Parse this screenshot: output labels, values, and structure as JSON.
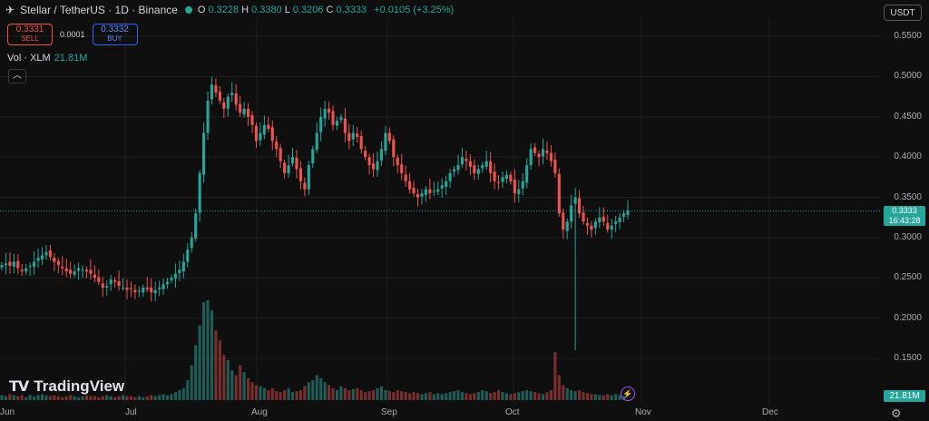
{
  "header": {
    "symbol": "Stellar / TetherUS · 1D · Binance",
    "open_key": "O",
    "open": "0.3228",
    "high_key": "H",
    "high": "0.3380",
    "low_key": "L",
    "low": "0.3206",
    "close_key": "C",
    "close": "0.3333",
    "change": "+0.0105 (+3.25%)"
  },
  "trade": {
    "sell_price": "0.3331",
    "sell_label": "SELL",
    "spread": "0.0001",
    "buy_price": "0.3332",
    "buy_label": "BUY"
  },
  "volume_legend": {
    "name": "Vol · XLM",
    "value": "21.81M"
  },
  "currency_button": "USDT",
  "y_axis_labels": [
    "0.5500",
    "0.5000",
    "0.4500",
    "0.4000",
    "0.3500",
    "0.3000",
    "0.2500",
    "0.2000",
    "0.1500"
  ],
  "x_axis_labels": [
    "Jun",
    "Jul",
    "Aug",
    "Sep",
    "Oct",
    "Nov",
    "Dec"
  ],
  "last_price": {
    "price": "0.3333",
    "countdown": "16:43:28"
  },
  "volume_badge": "21.81M",
  "logo_text": "TradingView",
  "colors": {
    "up": "#26a69a",
    "down": "#ef5350",
    "background": "#0f0f0f",
    "grid": "#1f1f1f",
    "price_line": "#26a69a"
  },
  "icons": {
    "symbol_logo": "stellar-logo-icon",
    "collapse": "chevron-up-icon",
    "settings": "gear-icon",
    "lightning": "lightning-icon"
  },
  "chart_data": {
    "type": "candlestick",
    "ylim": [
      0.11,
      0.58
    ],
    "y_ticks": [
      0.55,
      0.5,
      0.45,
      0.4,
      0.35,
      0.3,
      0.25,
      0.2,
      0.15
    ],
    "current_price": 0.3333,
    "spike_low": 0.16,
    "close_series": [
      0.266,
      0.268,
      0.265,
      0.27,
      0.262,
      0.258,
      0.262,
      0.265,
      0.27,
      0.275,
      0.278,
      0.282,
      0.276,
      0.27,
      0.266,
      0.262,
      0.258,
      0.255,
      0.258,
      0.262,
      0.26,
      0.258,
      0.255,
      0.25,
      0.245,
      0.238,
      0.24,
      0.248,
      0.245,
      0.24,
      0.238,
      0.235,
      0.236,
      0.232,
      0.234,
      0.238,
      0.236,
      0.232,
      0.235,
      0.238,
      0.242,
      0.245,
      0.25,
      0.255,
      0.26,
      0.27,
      0.285,
      0.3,
      0.33,
      0.38,
      0.43,
      0.47,
      0.49,
      0.48,
      0.47,
      0.46,
      0.475,
      0.48,
      0.465,
      0.455,
      0.46,
      0.45,
      0.44,
      0.42,
      0.43,
      0.44,
      0.435,
      0.42,
      0.41,
      0.395,
      0.38,
      0.39,
      0.4,
      0.385,
      0.37,
      0.36,
      0.39,
      0.41,
      0.43,
      0.45,
      0.46,
      0.455,
      0.44,
      0.445,
      0.45,
      0.43,
      0.42,
      0.43,
      0.425,
      0.41,
      0.4,
      0.39,
      0.385,
      0.395,
      0.41,
      0.43,
      0.42,
      0.4,
      0.39,
      0.38,
      0.37,
      0.36,
      0.355,
      0.35,
      0.355,
      0.36,
      0.355,
      0.358,
      0.36,
      0.365,
      0.37,
      0.38,
      0.385,
      0.39,
      0.4,
      0.395,
      0.388,
      0.38,
      0.385,
      0.39,
      0.395,
      0.38,
      0.37,
      0.368,
      0.375,
      0.378,
      0.37,
      0.355,
      0.36,
      0.37,
      0.39,
      0.41,
      0.405,
      0.4,
      0.41,
      0.405,
      0.395,
      0.38,
      0.33,
      0.31,
      0.32,
      0.34,
      0.35,
      0.33,
      0.32,
      0.315,
      0.31,
      0.32,
      0.325,
      0.32,
      0.31,
      0.315,
      0.32,
      0.325,
      0.33,
      0.3333
    ],
    "volume_series": [
      0.05,
      0.04,
      0.06,
      0.05,
      0.04,
      0.05,
      0.03,
      0.05,
      0.04,
      0.05,
      0.06,
      0.05,
      0.04,
      0.05,
      0.04,
      0.03,
      0.04,
      0.05,
      0.04,
      0.03,
      0.04,
      0.05,
      0.04,
      0.04,
      0.03,
      0.04,
      0.05,
      0.04,
      0.03,
      0.04,
      0.05,
      0.04,
      0.04,
      0.03,
      0.04,
      0.03,
      0.04,
      0.05,
      0.04,
      0.05,
      0.06,
      0.05,
      0.06,
      0.08,
      0.1,
      0.12,
      0.2,
      0.35,
      0.55,
      0.75,
      0.98,
      1.0,
      0.9,
      0.7,
      0.6,
      0.45,
      0.4,
      0.3,
      0.25,
      0.35,
      0.28,
      0.22,
      0.18,
      0.15,
      0.14,
      0.12,
      0.1,
      0.12,
      0.09,
      0.08,
      0.1,
      0.12,
      0.08,
      0.09,
      0.1,
      0.14,
      0.18,
      0.2,
      0.25,
      0.22,
      0.18,
      0.15,
      0.12,
      0.1,
      0.14,
      0.12,
      0.1,
      0.11,
      0.12,
      0.1,
      0.08,
      0.09,
      0.1,
      0.12,
      0.14,
      0.1,
      0.09,
      0.08,
      0.1,
      0.09,
      0.08,
      0.07,
      0.08,
      0.07,
      0.06,
      0.07,
      0.08,
      0.06,
      0.07,
      0.06,
      0.07,
      0.08,
      0.09,
      0.1,
      0.08,
      0.07,
      0.06,
      0.07,
      0.08,
      0.1,
      0.09,
      0.07,
      0.08,
      0.1,
      0.08,
      0.07,
      0.06,
      0.07,
      0.08,
      0.09,
      0.1,
      0.09,
      0.08,
      0.07,
      0.06,
      0.08,
      0.1,
      0.48,
      0.25,
      0.15,
      0.12,
      0.1,
      0.09,
      0.1,
      0.08,
      0.07,
      0.06,
      0.06,
      0.05,
      0.05,
      0.06,
      0.05,
      0.06,
      0.05,
      0.04
    ]
  }
}
